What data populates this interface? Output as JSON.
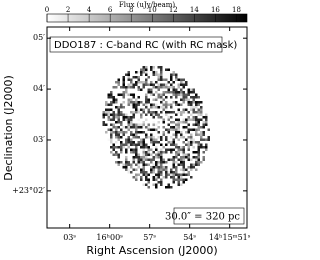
{
  "chart_data": {
    "type": "image",
    "title": "DDO187 : C-band RC (with RC mask)",
    "colorbar_label": "Flux (uJy/beam)",
    "clim": [
      0,
      19
    ],
    "cticks": [
      0,
      2,
      4,
      6,
      8,
      10,
      12,
      14,
      16,
      18
    ],
    "xlabel": "Right Ascension (J2000)",
    "ylabel": "Declination (J2000)",
    "xlim": [
      4.7,
      -10.3
    ],
    "xticks": [
      {
        "value": 3,
        "label": "03ˢ"
      },
      {
        "value": 0,
        "label": "16ʰ00ˢ"
      },
      {
        "value": -3,
        "label": "57ˢ"
      },
      {
        "value": -6,
        "label": "54ˢ"
      },
      {
        "value": -9,
        "label": "14ʰ15ᵐ51ˢ"
      }
    ],
    "ylim": [
      1.27,
      5.22
    ],
    "yticks": [
      {
        "value": 5,
        "label": "05′"
      },
      {
        "value": 4,
        "label": "04′"
      },
      {
        "value": 3,
        "label": "03′"
      },
      {
        "value": 2,
        "label": "+23°02′"
      }
    ],
    "scalebar": "30.0″ = 320 pc"
  }
}
